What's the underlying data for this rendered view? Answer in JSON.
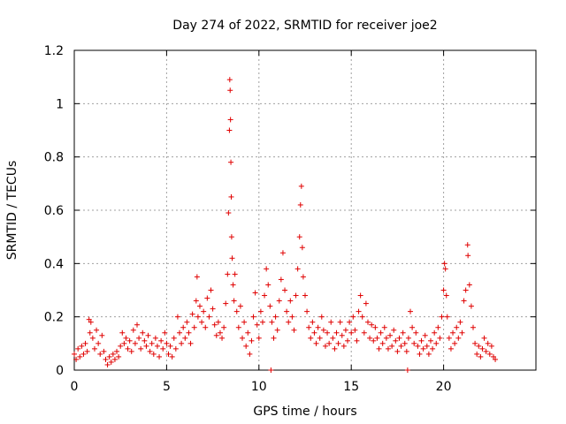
{
  "chart_data": {
    "type": "scatter",
    "title": "Day 274 of 2022, SRMTID for receiver joe2",
    "xlabel": "GPS time / hours",
    "ylabel": "SRMTID / TECUs",
    "xlim": [
      0,
      25
    ],
    "ylim": [
      0,
      1.2
    ],
    "xticks": [
      0,
      5,
      10,
      15,
      20
    ],
    "yticks": [
      0,
      0.2,
      0.4,
      0.6,
      0.8,
      1,
      1.2
    ],
    "xtick_labels": [
      "0",
      "5",
      "10",
      "15",
      "20"
    ],
    "ytick_labels": [
      "0",
      "0.2",
      "0.4",
      "0.6",
      "0.8",
      "1",
      "1.2"
    ],
    "grid": true,
    "marker": "+",
    "color": "#e00000",
    "series": [
      {
        "name": "SRMTID",
        "points": [
          [
            0.0,
            0.06
          ],
          [
            0.1,
            0.04
          ],
          [
            0.2,
            0.08
          ],
          [
            0.3,
            0.05
          ],
          [
            0.4,
            0.09
          ],
          [
            0.5,
            0.06
          ],
          [
            0.6,
            0.1
          ],
          [
            0.7,
            0.07
          ],
          [
            0.8,
            0.19
          ],
          [
            0.85,
            0.14
          ],
          [
            0.9,
            0.18
          ],
          [
            1.0,
            0.12
          ],
          [
            1.1,
            0.08
          ],
          [
            1.2,
            0.15
          ],
          [
            1.3,
            0.1
          ],
          [
            1.4,
            0.06
          ],
          [
            1.5,
            0.13
          ],
          [
            1.6,
            0.07
          ],
          [
            1.7,
            0.04
          ],
          [
            1.8,
            0.02
          ],
          [
            1.9,
            0.05
          ],
          [
            2.0,
            0.03
          ],
          [
            2.1,
            0.06
          ],
          [
            2.2,
            0.04
          ],
          [
            2.3,
            0.07
          ],
          [
            2.4,
            0.05
          ],
          [
            2.5,
            0.09
          ],
          [
            2.6,
            0.14
          ],
          [
            2.7,
            0.1
          ],
          [
            2.8,
            0.12
          ],
          [
            2.9,
            0.08
          ],
          [
            3.0,
            0.11
          ],
          [
            3.1,
            0.07
          ],
          [
            3.2,
            0.15
          ],
          [
            3.3,
            0.1
          ],
          [
            3.4,
            0.17
          ],
          [
            3.5,
            0.12
          ],
          [
            3.6,
            0.08
          ],
          [
            3.7,
            0.14
          ],
          [
            3.8,
            0.11
          ],
          [
            3.9,
            0.09
          ],
          [
            4.0,
            0.13
          ],
          [
            4.1,
            0.07
          ],
          [
            4.2,
            0.1
          ],
          [
            4.3,
            0.06
          ],
          [
            4.4,
            0.12
          ],
          [
            4.5,
            0.09
          ],
          [
            4.6,
            0.05
          ],
          [
            4.7,
            0.11
          ],
          [
            4.8,
            0.08
          ],
          [
            4.9,
            0.14
          ],
          [
            5.0,
            0.1
          ],
          [
            5.1,
            0.06
          ],
          [
            5.2,
            0.09
          ],
          [
            5.3,
            0.05
          ],
          [
            5.4,
            0.12
          ],
          [
            5.5,
            0.08
          ],
          [
            5.6,
            0.2
          ],
          [
            5.7,
            0.14
          ],
          [
            5.8,
            0.1
          ],
          [
            5.9,
            0.16
          ],
          [
            6.0,
            0.12
          ],
          [
            6.1,
            0.18
          ],
          [
            6.2,
            0.14
          ],
          [
            6.3,
            0.1
          ],
          [
            6.4,
            0.21
          ],
          [
            6.5,
            0.16
          ],
          [
            6.6,
            0.26
          ],
          [
            6.65,
            0.35
          ],
          [
            6.7,
            0.2
          ],
          [
            6.8,
            0.24
          ],
          [
            6.9,
            0.18
          ],
          [
            7.0,
            0.22
          ],
          [
            7.1,
            0.16
          ],
          [
            7.2,
            0.27
          ],
          [
            7.3,
            0.2
          ],
          [
            7.4,
            0.3
          ],
          [
            7.5,
            0.23
          ],
          [
            7.6,
            0.17
          ],
          [
            7.7,
            0.13
          ],
          [
            7.8,
            0.18
          ],
          [
            7.9,
            0.14
          ],
          [
            8.0,
            0.12
          ],
          [
            8.1,
            0.16
          ],
          [
            8.2,
            0.25
          ],
          [
            8.3,
            0.36
          ],
          [
            8.35,
            0.59
          ],
          [
            8.4,
            0.9
          ],
          [
            8.42,
            1.09
          ],
          [
            8.44,
            1.05
          ],
          [
            8.46,
            0.94
          ],
          [
            8.48,
            0.78
          ],
          [
            8.5,
            0.65
          ],
          [
            8.52,
            0.5
          ],
          [
            8.55,
            0.42
          ],
          [
            8.6,
            0.32
          ],
          [
            8.65,
            0.26
          ],
          [
            8.7,
            0.36
          ],
          [
            8.8,
            0.22
          ],
          [
            8.9,
            0.16
          ],
          [
            9.0,
            0.24
          ],
          [
            9.1,
            0.12
          ],
          [
            9.2,
            0.18
          ],
          [
            9.3,
            0.09
          ],
          [
            9.4,
            0.14
          ],
          [
            9.5,
            0.06
          ],
          [
            9.6,
            0.11
          ],
          [
            9.7,
            0.2
          ],
          [
            9.8,
            0.29
          ],
          [
            9.9,
            0.17
          ],
          [
            10.0,
            0.12
          ],
          [
            10.1,
            0.22
          ],
          [
            10.2,
            0.18
          ],
          [
            10.3,
            0.28
          ],
          [
            10.4,
            0.38
          ],
          [
            10.5,
            0.32
          ],
          [
            10.6,
            0.24
          ],
          [
            10.65,
            0.0
          ],
          [
            10.7,
            0.18
          ],
          [
            10.8,
            0.12
          ],
          [
            10.9,
            0.2
          ],
          [
            11.0,
            0.15
          ],
          [
            11.1,
            0.26
          ],
          [
            11.2,
            0.34
          ],
          [
            11.3,
            0.44
          ],
          [
            11.4,
            0.3
          ],
          [
            11.5,
            0.22
          ],
          [
            11.6,
            0.18
          ],
          [
            11.7,
            0.26
          ],
          [
            11.8,
            0.2
          ],
          [
            11.9,
            0.15
          ],
          [
            12.0,
            0.28
          ],
          [
            12.1,
            0.38
          ],
          [
            12.2,
            0.5
          ],
          [
            12.25,
            0.62
          ],
          [
            12.3,
            0.69
          ],
          [
            12.35,
            0.46
          ],
          [
            12.4,
            0.35
          ],
          [
            12.5,
            0.28
          ],
          [
            12.6,
            0.22
          ],
          [
            12.7,
            0.16
          ],
          [
            12.8,
            0.12
          ],
          [
            12.9,
            0.18
          ],
          [
            13.0,
            0.14
          ],
          [
            13.1,
            0.1
          ],
          [
            13.2,
            0.16
          ],
          [
            13.3,
            0.12
          ],
          [
            13.4,
            0.2
          ],
          [
            13.5,
            0.15
          ],
          [
            13.6,
            0.09
          ],
          [
            13.7,
            0.14
          ],
          [
            13.8,
            0.1
          ],
          [
            13.9,
            0.18
          ],
          [
            14.0,
            0.12
          ],
          [
            14.1,
            0.08
          ],
          [
            14.2,
            0.14
          ],
          [
            14.3,
            0.1
          ],
          [
            14.4,
            0.18
          ],
          [
            14.5,
            0.13
          ],
          [
            14.6,
            0.09
          ],
          [
            14.7,
            0.15
          ],
          [
            14.8,
            0.11
          ],
          [
            14.9,
            0.18
          ],
          [
            15.0,
            0.14
          ],
          [
            15.1,
            0.2
          ],
          [
            15.2,
            0.15
          ],
          [
            15.3,
            0.11
          ],
          [
            15.4,
            0.22
          ],
          [
            15.5,
            0.28
          ],
          [
            15.6,
            0.2
          ],
          [
            15.7,
            0.14
          ],
          [
            15.8,
            0.25
          ],
          [
            15.9,
            0.18
          ],
          [
            16.0,
            0.12
          ],
          [
            16.1,
            0.17
          ],
          [
            16.2,
            0.11
          ],
          [
            16.3,
            0.16
          ],
          [
            16.4,
            0.12
          ],
          [
            16.5,
            0.08
          ],
          [
            16.6,
            0.14
          ],
          [
            16.7,
            0.1
          ],
          [
            16.8,
            0.16
          ],
          [
            16.9,
            0.12
          ],
          [
            17.0,
            0.08
          ],
          [
            17.1,
            0.13
          ],
          [
            17.2,
            0.09
          ],
          [
            17.3,
            0.15
          ],
          [
            17.4,
            0.11
          ],
          [
            17.5,
            0.07
          ],
          [
            17.6,
            0.12
          ],
          [
            17.7,
            0.09
          ],
          [
            17.8,
            0.14
          ],
          [
            17.9,
            0.1
          ],
          [
            18.0,
            0.07
          ],
          [
            18.05,
            0.0
          ],
          [
            18.1,
            0.12
          ],
          [
            18.2,
            0.22
          ],
          [
            18.3,
            0.16
          ],
          [
            18.4,
            0.1
          ],
          [
            18.5,
            0.14
          ],
          [
            18.6,
            0.09
          ],
          [
            18.7,
            0.06
          ],
          [
            18.8,
            0.11
          ],
          [
            18.9,
            0.08
          ],
          [
            19.0,
            0.13
          ],
          [
            19.1,
            0.09
          ],
          [
            19.2,
            0.06
          ],
          [
            19.3,
            0.11
          ],
          [
            19.4,
            0.08
          ],
          [
            19.5,
            0.14
          ],
          [
            19.6,
            0.1
          ],
          [
            19.7,
            0.16
          ],
          [
            19.8,
            0.12
          ],
          [
            19.9,
            0.2
          ],
          [
            20.0,
            0.3
          ],
          [
            20.05,
            0.4
          ],
          [
            20.1,
            0.38
          ],
          [
            20.15,
            0.28
          ],
          [
            20.2,
            0.2
          ],
          [
            20.3,
            0.12
          ],
          [
            20.4,
            0.08
          ],
          [
            20.5,
            0.14
          ],
          [
            20.6,
            0.1
          ],
          [
            20.7,
            0.16
          ],
          [
            20.8,
            0.12
          ],
          [
            20.9,
            0.18
          ],
          [
            21.0,
            0.14
          ],
          [
            21.1,
            0.26
          ],
          [
            21.2,
            0.3
          ],
          [
            21.3,
            0.47
          ],
          [
            21.32,
            0.43
          ],
          [
            21.4,
            0.32
          ],
          [
            21.5,
            0.24
          ],
          [
            21.6,
            0.16
          ],
          [
            21.7,
            0.1
          ],
          [
            21.8,
            0.06
          ],
          [
            21.9,
            0.09
          ],
          [
            22.0,
            0.05
          ],
          [
            22.1,
            0.08
          ],
          [
            22.2,
            0.12
          ],
          [
            22.3,
            0.07
          ],
          [
            22.4,
            0.1
          ],
          [
            22.5,
            0.06
          ],
          [
            22.6,
            0.09
          ],
          [
            22.7,
            0.05
          ],
          [
            22.8,
            0.04
          ]
        ]
      }
    ]
  }
}
